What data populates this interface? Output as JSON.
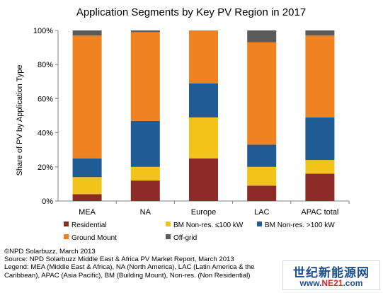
{
  "chart_data": {
    "type": "bar",
    "stacked": true,
    "title": "Application Segments by Key PV Region in 2017",
    "ylabel": "Share of PV by Application Type",
    "xlabel": "",
    "ylim": [
      0,
      100
    ],
    "y_ticks": [
      "0%",
      "20%",
      "40%",
      "60%",
      "80%",
      "100%"
    ],
    "y_tick_values": [
      0,
      20,
      40,
      60,
      80,
      100
    ],
    "grid": false,
    "legend_position": "bottom",
    "categories": [
      "MEA",
      "NA",
      "Europe",
      "LAC",
      "APAC total"
    ],
    "series": [
      {
        "name": "Residential",
        "color": "#8b2a27",
        "values": [
          4,
          12,
          25,
          9,
          16
        ]
      },
      {
        "name": "BM Non-res. ≤100 kW",
        "color": "#f2c318",
        "values": [
          10,
          8,
          24,
          11,
          8
        ]
      },
      {
        "name": "BM Non-res. >100 kW",
        "color": "#1f5b94",
        "values": [
          11,
          27,
          20,
          13,
          25
        ]
      },
      {
        "name": "Ground Mount",
        "color": "#f08222",
        "values": [
          72,
          52,
          31,
          60,
          48
        ]
      },
      {
        "name": "Off-grid",
        "color": "#5b5b5b",
        "values": [
          3,
          1,
          0,
          7,
          3
        ]
      }
    ]
  },
  "footer": {
    "line1": "©NPD Solarbuzz, March 2013",
    "line2": "Source: NPD Solarbuzz Middle East & Africa PV Market Report, March 2013",
    "line3": "Legend: MEA (Middle East & Africa), NA (North America), LAC (Latin America & the",
    "line4": "Caribbean), APAC (Asia Pacific), BM (Building Mount), Non-res. (Non Residential)"
  },
  "watermark": {
    "top_text": "世纪新能源网",
    "bottom_text_a": "www.",
    "bottom_text_b": "NE21",
    "bottom_text_c": ".com"
  }
}
